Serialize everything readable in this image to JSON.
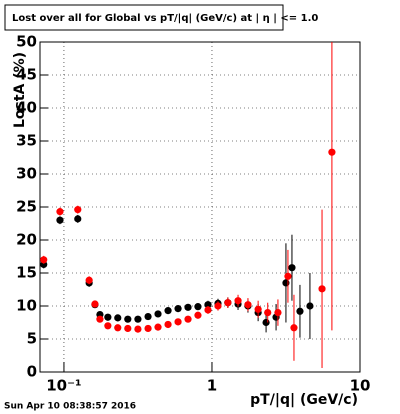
{
  "chart_data": {
    "type": "scatter",
    "title": "Lost over all for Global vs pT/|q| (GeV/c) at | η | <= 1.0",
    "x_label": "pT/|q| (GeV/c)",
    "y_label": "LostA (%)",
    "footer": "Sun Apr 10 08:38:57 2016",
    "xscale": "log",
    "grid": true,
    "xlim": [
      0.0689,
      10
    ],
    "ylim": [
      0,
      50
    ],
    "xticks": [
      {
        "value": 0.1,
        "label": "10⁻¹"
      },
      1,
      10
    ],
    "yticks": [
      0,
      5,
      10,
      15,
      20,
      25,
      30,
      35,
      40,
      45,
      50
    ],
    "series": [
      {
        "color": "#000000",
        "x": [
          0.073,
          0.094,
          0.124,
          0.148,
          0.162,
          0.175,
          0.198,
          0.231,
          0.27,
          0.316,
          0.37,
          0.432,
          0.505,
          0.59,
          0.689,
          0.804,
          0.94,
          1.098,
          1.28,
          1.5,
          1.75,
          2.05,
          2.32,
          2.71,
          3.16,
          3.47,
          3.93,
          4.59
        ],
        "values": [
          16.3,
          23.0,
          23.2,
          13.5,
          10.2,
          8.7,
          8.3,
          8.2,
          8.0,
          8.0,
          8.4,
          8.8,
          9.3,
          9.6,
          9.8,
          9.9,
          10.2,
          10.4,
          10.5,
          10.3,
          10.0,
          9.0,
          7.5,
          8.3,
          13.5,
          15.8,
          9.2,
          10.0
        ],
        "errors": [
          0.6,
          0.6,
          0.6,
          0.6,
          0.5,
          0.5,
          0.5,
          0.5,
          0.5,
          0.5,
          0.5,
          0.5,
          0.5,
          0.5,
          0.5,
          0.5,
          0.6,
          0.7,
          0.8,
          0.9,
          1.0,
          1.3,
          1.5,
          2.0,
          6.0,
          5.0,
          4.0,
          5.0
        ]
      },
      {
        "color": "#ff0000",
        "x": [
          0.073,
          0.094,
          0.124,
          0.148,
          0.162,
          0.175,
          0.198,
          0.231,
          0.27,
          0.316,
          0.37,
          0.432,
          0.505,
          0.59,
          0.689,
          0.804,
          0.94,
          1.098,
          1.28,
          1.5,
          1.75,
          2.05,
          2.38,
          2.79,
          3.26,
          3.58,
          5.54,
          6.46
        ],
        "values": [
          17.0,
          24.3,
          24.6,
          13.9,
          10.3,
          8.0,
          7.0,
          6.7,
          6.6,
          6.5,
          6.6,
          6.8,
          7.2,
          7.6,
          8.0,
          8.6,
          9.4,
          10.0,
          10.5,
          10.8,
          10.2,
          9.5,
          9.0,
          9.0,
          14.5,
          6.7,
          12.6,
          33.3
        ],
        "errors": [
          0.6,
          0.6,
          0.6,
          0.6,
          0.5,
          0.5,
          0.5,
          0.5,
          0.5,
          0.5,
          0.5,
          0.5,
          0.5,
          0.5,
          0.5,
          0.5,
          0.6,
          0.7,
          0.8,
          0.9,
          1.0,
          1.3,
          1.5,
          2.0,
          4.0,
          5.0,
          12.0,
          27.0
        ]
      }
    ]
  }
}
